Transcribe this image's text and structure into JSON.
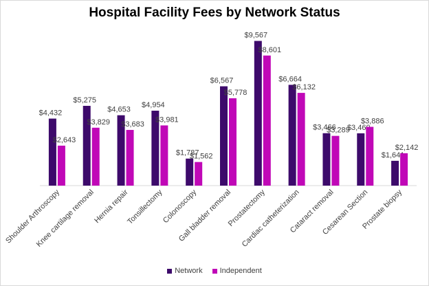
{
  "chart_data": {
    "type": "bar",
    "title": "Hospital Facility Fees by Network Status",
    "xlabel": "",
    "ylabel": "",
    "ylim": [
      0,
      10000
    ],
    "grid": false,
    "legend_position": "bottom",
    "categories": [
      "Shoulder Arthroscopy",
      "Knee cartilage removal",
      "Hernia repair",
      "Tonsillectomy",
      "Colonoscopy",
      "Gall bladder removal",
      "Prostatectomy",
      "Cardiac catheterization",
      "Cataract removal",
      "Cesarean Section",
      "Prostate biopsy"
    ],
    "series": [
      {
        "name": "Network",
        "color": "#3d0a6b",
        "values": [
          4432,
          5275,
          4653,
          4954,
          1787,
          6567,
          9567,
          6664,
          3466,
          3460,
          1641
        ],
        "labels": [
          "$4,432",
          "$5,275",
          "$4,653",
          "$4,954",
          "$1,787",
          "$6,567",
          "$9,567",
          "$6,664",
          "$3,466",
          "$3,460",
          "$1,641"
        ]
      },
      {
        "name": "Independent",
        "color": "#c008b7",
        "values": [
          2643,
          3829,
          3683,
          3981,
          1562,
          5778,
          8601,
          6132,
          3289,
          3886,
          2142
        ],
        "labels": [
          "$2,643",
          "$3,829",
          "$3,683",
          "$3,981",
          "$1,562",
          "$5,778",
          "$8,601",
          "$6,132",
          "$3,289",
          "$3,886",
          "$2,142"
        ]
      }
    ]
  }
}
